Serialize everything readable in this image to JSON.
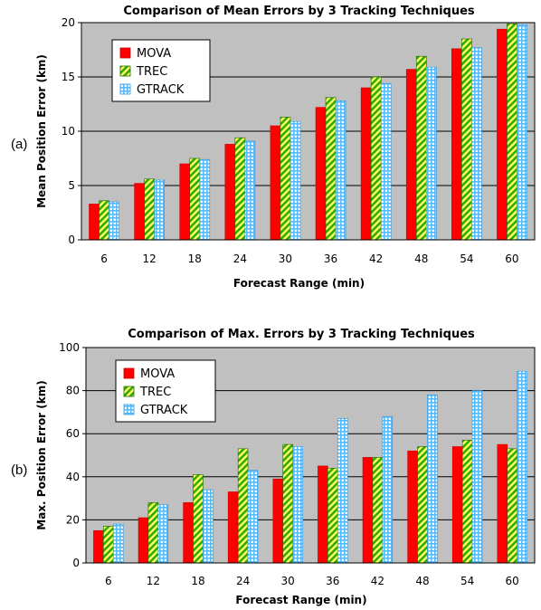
{
  "chart_data": [
    {
      "type": "bar",
      "panel_label": "(a)",
      "title": "Comparison of Mean Errors by 3 Tracking Techniques",
      "xlabel": "Forecast Range (min)",
      "ylabel": "Mean Position Error (km)",
      "ylim": [
        0,
        20
      ],
      "yticks": [
        0,
        5,
        10,
        15,
        20
      ],
      "grid": true,
      "legend": "top-left",
      "categories": [
        "6",
        "12",
        "18",
        "24",
        "30",
        "36",
        "42",
        "48",
        "54",
        "60"
      ],
      "series": [
        {
          "name": "MOVA",
          "color": "#ff0000",
          "values": [
            3.3,
            5.2,
            7.0,
            8.8,
            10.5,
            12.2,
            14.0,
            15.7,
            17.6,
            19.4
          ]
        },
        {
          "name": "TREC",
          "color": "#66cc00",
          "values": [
            3.6,
            5.6,
            7.5,
            9.4,
            11.3,
            13.1,
            15.0,
            16.9,
            18.5,
            19.9
          ]
        },
        {
          "name": "GTRACK",
          "color": "#66ccff",
          "values": [
            3.5,
            5.5,
            7.4,
            9.1,
            10.9,
            12.8,
            14.4,
            15.9,
            17.7,
            19.8
          ]
        }
      ]
    },
    {
      "type": "bar",
      "panel_label": "(b)",
      "title": "Comparison of Max. Errors by 3 Tracking Techniques",
      "xlabel": "Forecast Range (min)",
      "ylabel": "Max. Position Error (km)",
      "ylim": [
        0,
        100
      ],
      "yticks": [
        0,
        20,
        40,
        60,
        80,
        100
      ],
      "grid": true,
      "legend": "top-left",
      "categories": [
        "6",
        "12",
        "18",
        "24",
        "30",
        "36",
        "42",
        "48",
        "54",
        "60"
      ],
      "series": [
        {
          "name": "MOVA",
          "color": "#ff0000",
          "values": [
            15,
            21,
            28,
            33,
            39,
            45,
            49,
            52,
            54,
            55
          ]
        },
        {
          "name": "TREC",
          "color": "#66cc00",
          "values": [
            17,
            28,
            41,
            53,
            55,
            44,
            49,
            54,
            57,
            53
          ]
        },
        {
          "name": "GTRACK",
          "color": "#66ccff",
          "values": [
            18,
            27,
            34,
            43,
            54,
            67,
            68,
            78,
            80,
            89
          ]
        }
      ]
    }
  ]
}
